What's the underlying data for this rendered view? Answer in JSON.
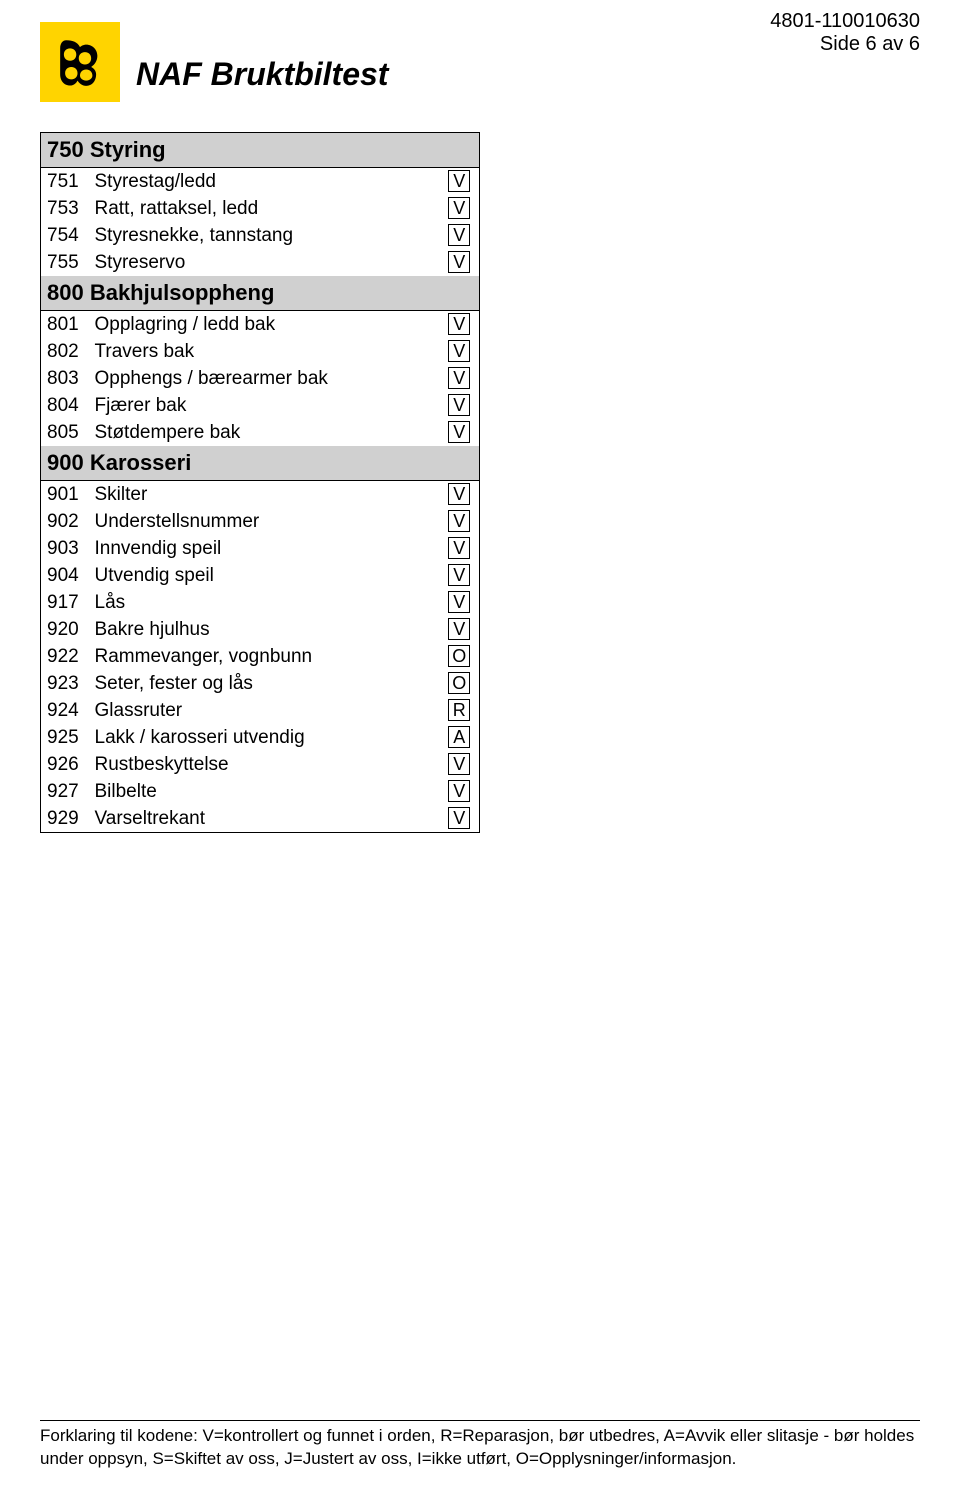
{
  "header": {
    "doc_id": "4801-110010630",
    "page_info": "Side 6 av 6",
    "title": "NAF Bruktbiltest"
  },
  "sections": [
    {
      "code": "750",
      "name": "Styring",
      "items": [
        {
          "code": "751",
          "label": "Styrestag/ledd",
          "status": "V"
        },
        {
          "code": "753",
          "label": "Ratt, rattaksel, ledd",
          "status": "V"
        },
        {
          "code": "754",
          "label": "Styresnekke, tannstang",
          "status": "V"
        },
        {
          "code": "755",
          "label": "Styreservo",
          "status": "V"
        }
      ]
    },
    {
      "code": "800",
      "name": "Bakhjulsoppheng",
      "items": [
        {
          "code": "801",
          "label": "Opplagring / ledd bak",
          "status": "V"
        },
        {
          "code": "802",
          "label": "Travers bak",
          "status": "V"
        },
        {
          "code": "803",
          "label": "Opphengs / bærearmer bak",
          "status": "V"
        },
        {
          "code": "804",
          "label": "Fjærer bak",
          "status": "V"
        },
        {
          "code": "805",
          "label": "Støtdempere bak",
          "status": "V"
        }
      ]
    },
    {
      "code": "900",
      "name": "Karosseri",
      "items": [
        {
          "code": "901",
          "label": "Skilter",
          "status": "V"
        },
        {
          "code": "902",
          "label": "Understellsnummer",
          "status": "V"
        },
        {
          "code": "903",
          "label": "Innvendig speil",
          "status": "V"
        },
        {
          "code": "904",
          "label": "Utvendig speil",
          "status": "V"
        },
        {
          "code": "917",
          "label": "Lås",
          "status": "V"
        },
        {
          "code": "920",
          "label": "Bakre hjulhus",
          "status": "V"
        },
        {
          "code": "922",
          "label": "Rammevanger, vognbunn",
          "status": "O"
        },
        {
          "code": "923",
          "label": "Seter, fester og lås",
          "status": "O"
        },
        {
          "code": "924",
          "label": "Glassruter",
          "status": "R"
        },
        {
          "code": "925",
          "label": "Lakk / karosseri utvendig",
          "status": "A"
        },
        {
          "code": "926",
          "label": "Rustbeskyttelse",
          "status": "V"
        },
        {
          "code": "927",
          "label": "Bilbelte",
          "status": "V"
        },
        {
          "code": "929",
          "label": "Varseltrekant",
          "status": "V"
        }
      ]
    }
  ],
  "footer": {
    "text": "Forklaring til kodene: V=kontrollert og funnet i orden, R=Reparasjon, bør utbedres, A=Avvik eller slitasje - bør holdes under oppsyn, S=Skiftet av oss, J=Justert av oss, I=ikke utført, O=Opplysninger/informasjon."
  },
  "colors": {
    "logo_bg": "#ffd400",
    "section_bg": "#d0d0d0",
    "page_bg": "#ffffff",
    "text": "#000000"
  }
}
